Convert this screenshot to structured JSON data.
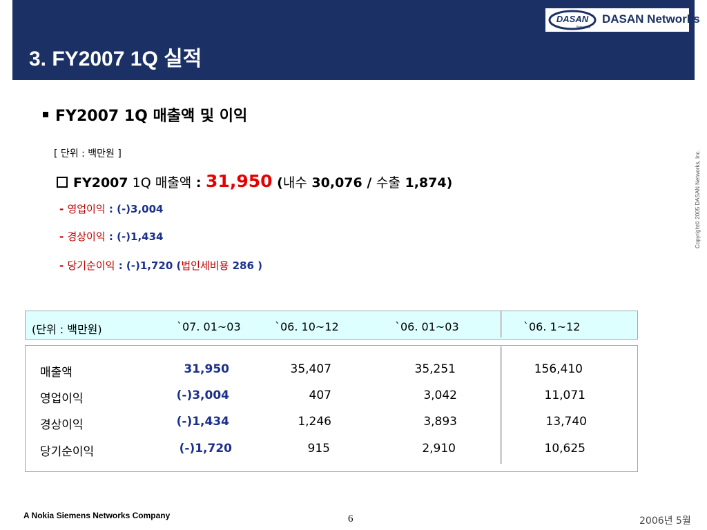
{
  "header": {
    "title": "3. FY2007 1Q 실적",
    "logo_mark": "DASAN",
    "logo_sub": "Networks",
    "logo_text": "DASAN Networks"
  },
  "section": {
    "heading": "FY2007 1Q 매출액 및 이익",
    "unit_note": "[ 단위 :  백만원 ]"
  },
  "summary": {
    "prefix_bold": "FY2007",
    "prefix_rest": " 1Q 매출액",
    "colon": " : ",
    "revenue": "31,950",
    "open": "  (",
    "domestic_label": "내수",
    "domestic_value": " 30,076 / ",
    "export_label": " 수출",
    "export_value": " 1,874)"
  },
  "details": [
    {
      "dash": "- ",
      "label": "영업이익",
      "value": " : (-)3,004"
    },
    {
      "dash": "- ",
      "label": "경상이익",
      "value": " : (-)1,434"
    },
    {
      "dash": "- ",
      "label": "당기순이익",
      "value": " : (-)1,720 (",
      "label2": "법인세비용",
      "value2": " 286 )"
    }
  ],
  "copyright": "Copyright© 2005 DASAN Networks, Inc.",
  "table": {
    "headers": [
      "(단위 : 백만원)",
      "`07. 01~03",
      "`06. 10~12",
      "`06. 01~03",
      "`06. 1~12"
    ],
    "rows": [
      {
        "label": "매출액",
        "values": [
          "31,950",
          "35,407",
          "35,251",
          "156,410"
        ]
      },
      {
        "label": "영업이익",
        "values": [
          "(-)3,004",
          "407",
          "3,042",
          "11,071"
        ]
      },
      {
        "label": "경상이익",
        "values": [
          "(-)1,434",
          "1,246",
          "3,893",
          "13,740"
        ]
      },
      {
        "label": "당기순이익",
        "values": [
          "(-)1,720",
          "915",
          "2,910",
          "10,625"
        ]
      }
    ]
  },
  "footer": {
    "company": "A Nokia Siemens Networks Company",
    "page": "6",
    "date": "2006년 5월"
  },
  "colors": {
    "header_bg": "#1b3166",
    "table_header_bg": "#ddffff",
    "accent_red": "#e60000",
    "value_navy": "#1b2f8c"
  }
}
